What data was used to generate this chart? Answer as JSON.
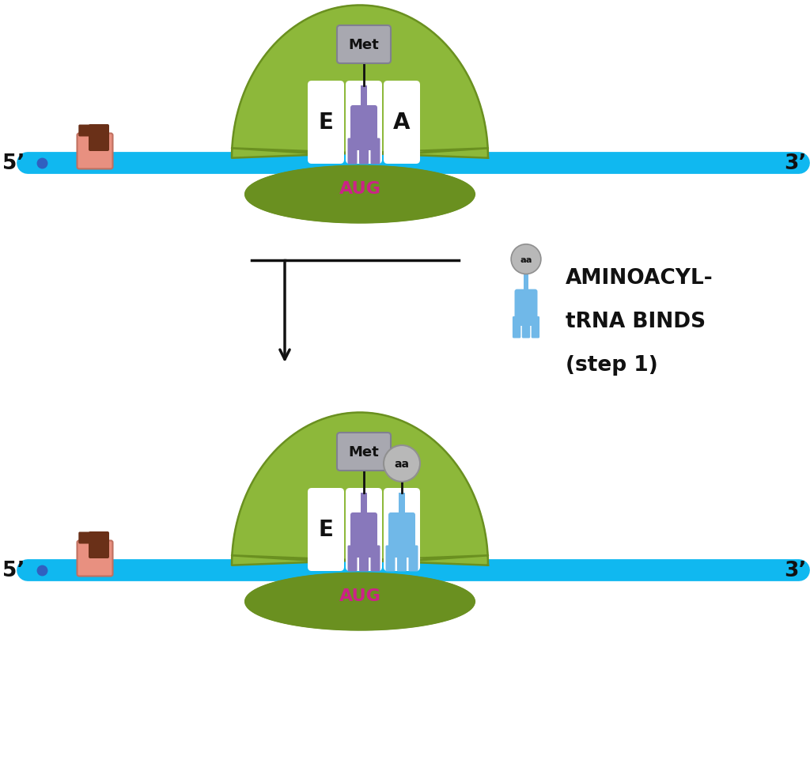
{
  "bg_color": "#ffffff",
  "ribosome_light": "#a8c84a",
  "ribosome_mid": "#8db83a",
  "ribosome_dark": "#6a9020",
  "mrna_color": "#10b8f0",
  "mrna_dot_color": "#3060c0",
  "cap_salmon": "#e89080",
  "cap_brown": "#6a3018",
  "trna_purple": "#8878bb",
  "trna_blue": "#70b8e8",
  "aa_gray": "#b8b8b8",
  "met_gray": "#a8a8b0",
  "aug_magenta": "#cc2288",
  "black": "#111111",
  "white": "#ffffff",
  "label_5": "5’",
  "label_3": "3’",
  "label_E": "E",
  "label_A": "A",
  "label_AUG": "AUG",
  "label_Met": "Met",
  "label_aa": "aa",
  "label_line1": "AMINOACYL-",
  "label_line2": "tRNA BINDS",
  "label_line3": "(step 1)"
}
